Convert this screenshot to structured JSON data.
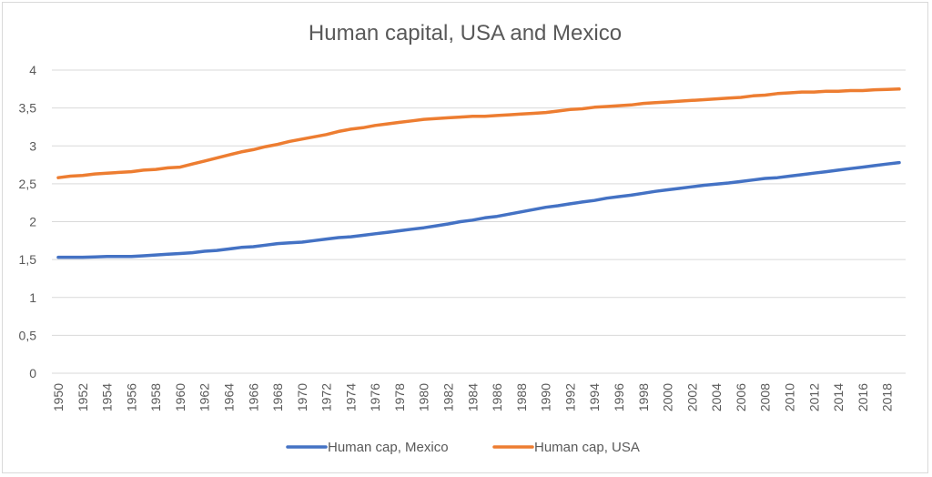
{
  "chart_data": {
    "type": "line",
    "title": "Human capital, USA and Mexico",
    "xlabel": "",
    "ylabel": "",
    "ylim": [
      0,
      4
    ],
    "xlim": [
      1950,
      2019
    ],
    "grid": true,
    "legend_position": "bottom",
    "y_ticks": [
      "0",
      "0,5",
      "1",
      "1,5",
      "2",
      "2,5",
      "3",
      "3,5",
      "4"
    ],
    "y_tick_values": [
      0,
      0.5,
      1,
      1.5,
      2,
      2.5,
      3,
      3.5,
      4
    ],
    "x_ticks": [
      "1950",
      "1952",
      "1954",
      "1956",
      "1958",
      "1960",
      "1962",
      "1964",
      "1966",
      "1968",
      "1970",
      "1972",
      "1974",
      "1976",
      "1978",
      "1980",
      "1982",
      "1984",
      "1986",
      "1988",
      "1990",
      "1992",
      "1994",
      "1996",
      "1998",
      "2000",
      "2002",
      "2004",
      "2006",
      "2008",
      "2010",
      "2012",
      "2014",
      "2016",
      "2018"
    ],
    "x": [
      1950,
      1951,
      1952,
      1953,
      1954,
      1955,
      1956,
      1957,
      1958,
      1959,
      1960,
      1961,
      1962,
      1963,
      1964,
      1965,
      1966,
      1967,
      1968,
      1969,
      1970,
      1971,
      1972,
      1973,
      1974,
      1975,
      1976,
      1977,
      1978,
      1979,
      1980,
      1981,
      1982,
      1983,
      1984,
      1985,
      1986,
      1987,
      1988,
      1989,
      1990,
      1991,
      1992,
      1993,
      1994,
      1995,
      1996,
      1997,
      1998,
      1999,
      2000,
      2001,
      2002,
      2003,
      2004,
      2005,
      2006,
      2007,
      2008,
      2009,
      2010,
      2011,
      2012,
      2013,
      2014,
      2015,
      2016,
      2017,
      2018,
      2019
    ],
    "series": [
      {
        "name": "Human cap, Mexico",
        "color": "#4472C4",
        "values": [
          1.53,
          1.53,
          1.53,
          1.535,
          1.54,
          1.54,
          1.54,
          1.55,
          1.56,
          1.57,
          1.58,
          1.59,
          1.61,
          1.62,
          1.64,
          1.66,
          1.67,
          1.69,
          1.71,
          1.72,
          1.73,
          1.75,
          1.77,
          1.79,
          1.8,
          1.82,
          1.84,
          1.86,
          1.88,
          1.9,
          1.92,
          1.945,
          1.97,
          2.0,
          2.02,
          2.05,
          2.07,
          2.1,
          2.13,
          2.16,
          2.19,
          2.21,
          2.235,
          2.26,
          2.28,
          2.31,
          2.33,
          2.35,
          2.375,
          2.4,
          2.42,
          2.44,
          2.46,
          2.48,
          2.495,
          2.51,
          2.53,
          2.55,
          2.57,
          2.58,
          2.6,
          2.62,
          2.64,
          2.66,
          2.68,
          2.7,
          2.72,
          2.74,
          2.76,
          2.78
        ]
      },
      {
        "name": "Human cap, USA",
        "color": "#ED7D31",
        "values": [
          2.58,
          2.6,
          2.61,
          2.63,
          2.64,
          2.65,
          2.66,
          2.68,
          2.69,
          2.71,
          2.72,
          2.76,
          2.8,
          2.84,
          2.88,
          2.92,
          2.95,
          2.99,
          3.02,
          3.06,
          3.09,
          3.12,
          3.15,
          3.19,
          3.22,
          3.24,
          3.27,
          3.29,
          3.31,
          3.33,
          3.35,
          3.36,
          3.37,
          3.38,
          3.39,
          3.39,
          3.4,
          3.41,
          3.42,
          3.43,
          3.44,
          3.46,
          3.48,
          3.49,
          3.51,
          3.52,
          3.53,
          3.54,
          3.56,
          3.57,
          3.58,
          3.59,
          3.6,
          3.61,
          3.62,
          3.63,
          3.64,
          3.66,
          3.67,
          3.69,
          3.7,
          3.71,
          3.71,
          3.72,
          3.72,
          3.73,
          3.73,
          3.74,
          3.745,
          3.75
        ]
      }
    ]
  }
}
